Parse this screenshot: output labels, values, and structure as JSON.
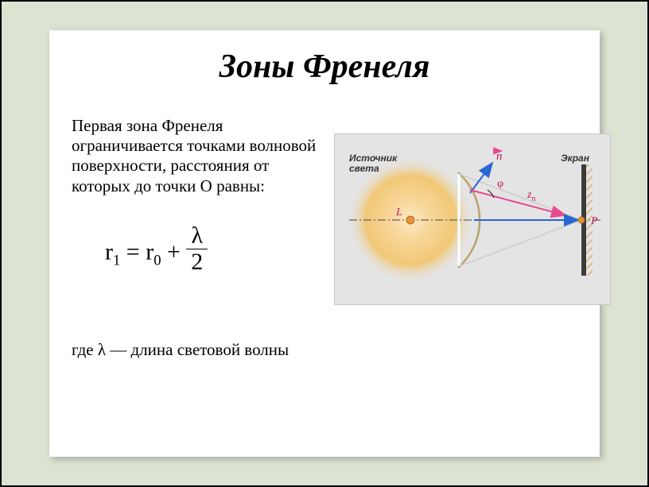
{
  "title": "Зоны Френеля",
  "paragraph": " Первая зона Френеля ограничивается точками волновой поверхности, расстояния от которых до точки О равны:",
  "formula": {
    "r1": "r",
    "r1sub": "1",
    "eq": " = ",
    "r0": "r",
    "r0sub": "0",
    "plus": " + ",
    "num": "λ",
    "den": "2"
  },
  "footer": "где λ — длина световой волны",
  "diagram": {
    "label_source": "Источник света",
    "label_screen": "Экран",
    "label_n": "n",
    "label_phi": "φ",
    "label_zn": "z",
    "label_zn_sub": "n",
    "label_L": "L",
    "label_P": "P",
    "colors": {
      "bg": "#e4e4e4",
      "glow_center": "#f8d79b",
      "glow_mid": "#f1c876",
      "arrow": "#2965d4",
      "arrow_z": "#e64a8f",
      "axis": "#666666",
      "screen": "#3b3b3b",
      "hatch": "#d49a3a",
      "source": "#e6933a",
      "point_p": "#e6933a",
      "text": "#333333"
    }
  }
}
